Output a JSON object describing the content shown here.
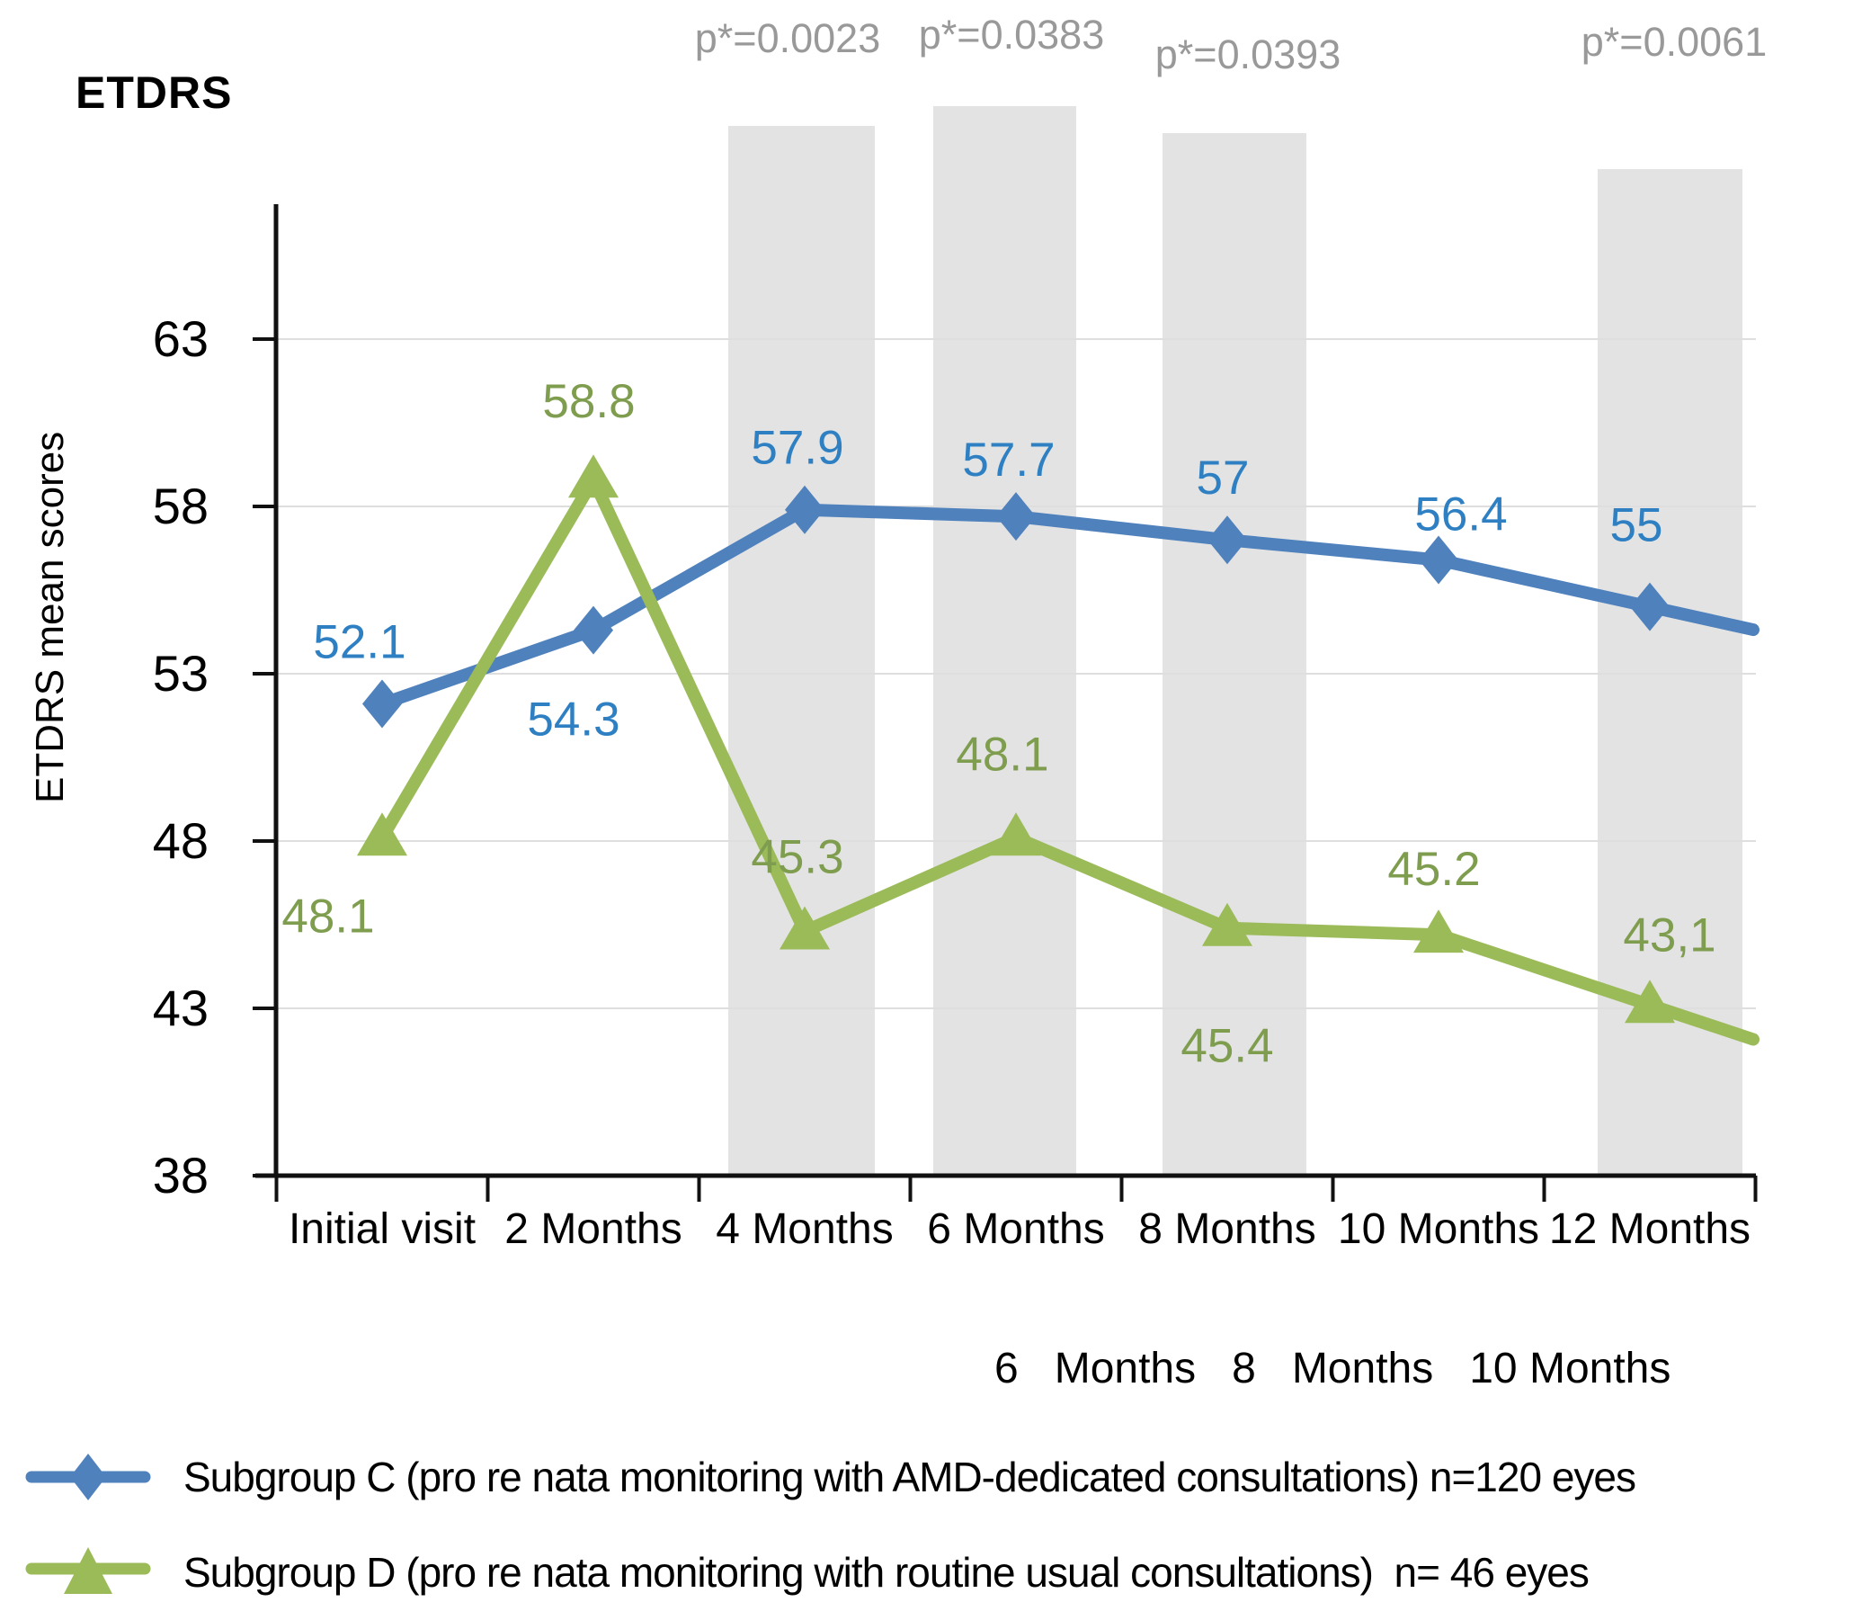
{
  "title": "ETDRS",
  "y_axis_title": "ETDRS mean scores",
  "chart_data": {
    "type": "line",
    "categories": [
      "Initial visit",
      "2 Months",
      "4 Months",
      "6 Months",
      "8 Months",
      "10 Months",
      "12 Months"
    ],
    "xlabel": "",
    "ylabel": "ETDRS mean scores",
    "ylim": [
      38,
      63
    ],
    "yticks": [
      38,
      43,
      48,
      53,
      58,
      63
    ],
    "grid": "horizontal-light",
    "legend_position": "bottom-left",
    "series": [
      {
        "name": "Subgroup C (pro re nata monitoring with AMD-dedicated consultations) n=120 eyes",
        "marker": "diamond",
        "color": "#4f81bd",
        "label_color": "#2e80c3",
        "values": [
          52.1,
          54.3,
          57.9,
          57.7,
          57,
          56.4,
          55
        ],
        "labels": [
          "52.1",
          "54.3",
          "57.9",
          "57.7",
          "57",
          "56.4",
          "55"
        ]
      },
      {
        "name": "Subgroup D (pro re nata monitoring with routine usual consultations)  n= 46 eyes",
        "marker": "triangle",
        "color": "#9bbb59",
        "label_color": "#7f9d4e",
        "values": [
          48.1,
          58.8,
          45.3,
          48.1,
          45.4,
          45.2,
          43.1
        ],
        "labels": [
          "48.1",
          "58.8",
          "45.3",
          "48.1",
          "45.4",
          "45.2",
          "43,1"
        ]
      }
    ],
    "significance": [
      {
        "text": "p*=0.0023",
        "category": "4 Months"
      },
      {
        "text": "p*=0.0383",
        "category": "6 Months"
      },
      {
        "text": "p*=0.0393",
        "category": "8 Months"
      },
      {
        "text": "p*=0.0061",
        "category": "12 Months"
      }
    ],
    "stray_axis_text": "6   Months   8   Months   10 Months",
    "colors": {
      "band": "#e3e3e3",
      "p_label": "#999999",
      "gridline": "#dedede",
      "axis": "#111111"
    }
  }
}
